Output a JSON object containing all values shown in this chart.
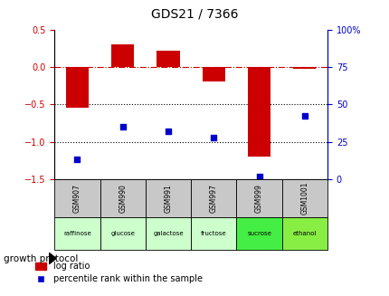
{
  "title": "GDS21 / 7366",
  "categories": [
    "GSM907",
    "GSM990",
    "GSM991",
    "GSM997",
    "GSM999",
    "GSM1001"
  ],
  "protocols": [
    "raffinose",
    "glucose",
    "galactose",
    "fructose",
    "sucrose",
    "ethanol"
  ],
  "log_ratio": [
    -0.55,
    0.3,
    0.22,
    -0.2,
    -1.2,
    -0.02
  ],
  "percentile_rank": [
    13,
    35,
    32,
    28,
    2,
    42
  ],
  "ylim_left": [
    -1.5,
    0.5
  ],
  "ylim_right": [
    0,
    100
  ],
  "bar_color": "#cc0000",
  "dot_color": "#0000cc",
  "dashed_line_color": "#cc0000",
  "dotted_line_color": "#000000",
  "protocol_colors": [
    "#ccffcc",
    "#ccffcc",
    "#ccffcc",
    "#ccffcc",
    "#44ee44",
    "#88ee44"
  ],
  "gsm_bg_color": "#c8c8c8",
  "bar_width": 0.5,
  "title_color": "#000000",
  "left_axis_color": "#cc0000",
  "right_axis_color": "#0000cc"
}
